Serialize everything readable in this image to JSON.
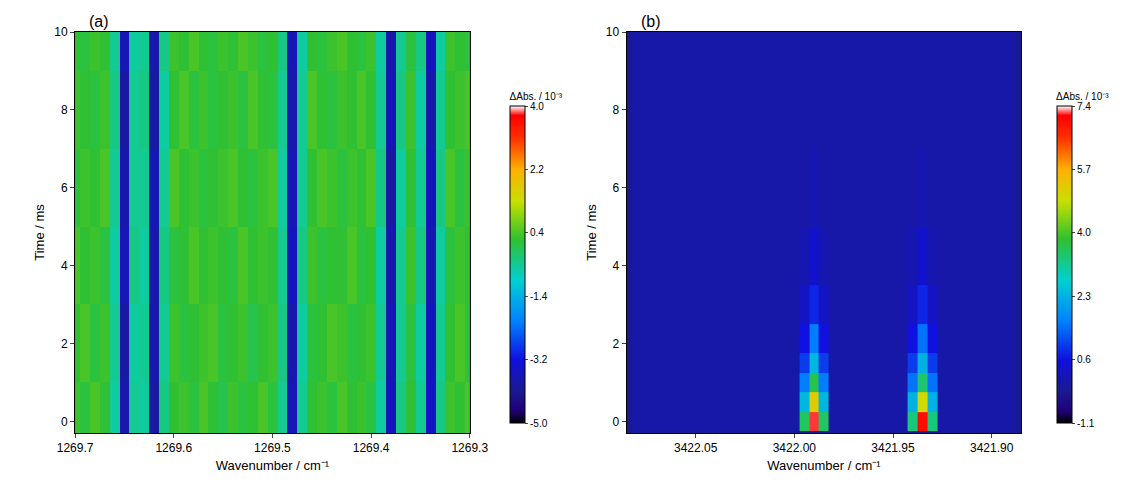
{
  "chart_data": [
    {
      "type": "heatmap",
      "annotations": [
        "(a)"
      ],
      "x_label": "Wavenumber / cm⁻¹",
      "y_label": "Time / ms",
      "colorbar_title": "ΔAbs. / 10⁻³",
      "xlim": [
        1269.7,
        1269.3
      ],
      "xticks": [
        1269.7,
        1269.6,
        1269.5,
        1269.4,
        1269.3
      ],
      "ylim": [
        -0.3,
        10
      ],
      "yticks": [
        0,
        2,
        4,
        6,
        8,
        10
      ],
      "zlim": [
        -5,
        4
      ],
      "zticks": [
        {
          "value": -5,
          "label": "-5.0"
        },
        -3.2,
        -1.4,
        0.4,
        2.2,
        {
          "value": 4,
          "label": "4.0"
        }
      ],
      "x": [
        1269.7,
        1269.69,
        1269.68,
        1269.67,
        1269.66,
        1269.65,
        1269.64,
        1269.63,
        1269.62,
        1269.61,
        1269.6,
        1269.59,
        1269.58,
        1269.57,
        1269.56,
        1269.55,
        1269.54,
        1269.53,
        1269.52,
        1269.51,
        1269.5,
        1269.49,
        1269.48,
        1269.47,
        1269.46,
        1269.45,
        1269.44,
        1269.43,
        1269.42,
        1269.41,
        1269.4,
        1269.39,
        1269.38,
        1269.37,
        1269.36,
        1269.35,
        1269.34,
        1269.33,
        1269.32,
        1269.31,
        1269.3
      ],
      "y": [
        0,
        2,
        4,
        6,
        8,
        10
      ],
      "z": [
        [
          0.3,
          0.1,
          0.4,
          0.2,
          -0.6,
          -3.8,
          -0.5,
          -0.6,
          -3.9,
          -0.4,
          0.2,
          0.3,
          0.1,
          0.4,
          0.2,
          0.0,
          0.3,
          0.1,
          0.2,
          0.4,
          0.1,
          -0.5,
          -3.7,
          -0.5,
          0.2,
          0.3,
          0.1,
          0.4,
          0.2,
          0.3,
          0.1,
          -0.6,
          -3.6,
          -0.4,
          0.2,
          -0.5,
          -3.5,
          -0.4,
          0.3,
          0.2,
          0.4
        ],
        [
          0.2,
          0.4,
          0.1,
          0.3,
          -0.5,
          -3.9,
          -0.6,
          -0.5,
          -3.8,
          -0.5,
          0.3,
          0.1,
          0.2,
          0.3,
          0.4,
          0.1,
          0.2,
          0.3,
          0.0,
          0.2,
          0.3,
          -0.4,
          -3.8,
          -0.6,
          0.1,
          0.2,
          0.4,
          0.3,
          0.1,
          0.2,
          0.3,
          -0.5,
          -3.7,
          -0.5,
          0.1,
          -0.6,
          -3.6,
          -0.5,
          0.2,
          0.4,
          0.1
        ],
        [
          0.4,
          0.2,
          0.3,
          0.1,
          -0.6,
          -3.7,
          -0.4,
          -0.6,
          -3.8,
          -0.4,
          0.1,
          0.2,
          0.4,
          0.2,
          0.3,
          0.2,
          0.1,
          0.4,
          0.2,
          0.3,
          0.2,
          -0.5,
          -3.6,
          -0.4,
          0.3,
          0.1,
          0.2,
          0.2,
          0.4,
          0.1,
          0.2,
          -0.6,
          -3.8,
          -0.5,
          0.3,
          -0.4,
          -3.7,
          -0.6,
          0.1,
          0.3,
          0.2
        ],
        [
          0.1,
          0.3,
          0.2,
          0.4,
          -0.5,
          -3.8,
          -0.5,
          -0.5,
          -3.7,
          -0.5,
          0.4,
          0.2,
          0.3,
          0.1,
          0.2,
          0.3,
          0.4,
          0.2,
          0.1,
          0.3,
          0.4,
          -0.6,
          -3.7,
          -0.5,
          0.2,
          0.4,
          0.3,
          0.1,
          0.3,
          0.2,
          0.4,
          -0.4,
          -3.9,
          -0.6,
          0.2,
          -0.5,
          -3.6,
          -0.4,
          0.4,
          0.1,
          0.3
        ],
        [
          0.3,
          0.2,
          0.1,
          0.3,
          -0.4,
          -3.9,
          -0.5,
          -0.4,
          -3.9,
          -0.6,
          0.2,
          0.4,
          0.1,
          0.3,
          0.1,
          0.2,
          0.3,
          0.1,
          0.4,
          0.2,
          0.1,
          -0.5,
          -3.8,
          -0.5,
          0.4,
          0.2,
          0.1,
          0.3,
          0.2,
          0.4,
          0.2,
          -0.5,
          -3.7,
          -0.4,
          0.3,
          -0.6,
          -3.8,
          -0.5,
          0.2,
          0.3,
          0.4
        ],
        [
          0.2,
          0.1,
          0.3,
          0.2,
          -0.5,
          -3.7,
          -0.6,
          -0.5,
          -3.8,
          -0.4,
          0.3,
          0.2,
          0.4,
          0.2,
          0.1,
          0.3,
          0.2,
          0.4,
          0.3,
          0.1,
          0.2,
          -0.4,
          -3.7,
          -0.6,
          0.2,
          0.1,
          0.3,
          0.4,
          0.2,
          0.1,
          0.3,
          -0.6,
          -3.8,
          -0.5,
          0.1,
          -0.4,
          -3.6,
          -0.6,
          0.3,
          0.2,
          0.1
        ]
      ]
    },
    {
      "type": "heatmap",
      "annotations": [
        "(b)"
      ],
      "x_label": "Wavenumber / cm⁻¹",
      "y_label": "Time / ms",
      "colorbar_title": "ΔAbs. / 10⁻³",
      "xlim": [
        3422.085,
        3421.885
      ],
      "xticks": [
        3422.05,
        {
          "value": 3422.0,
          "label": "3422.00"
        },
        3421.95,
        {
          "value": 3421.9,
          "label": "3421.90"
        }
      ],
      "ylim": [
        -0.3,
        10
      ],
      "yticks": [
        0,
        2,
        4,
        6,
        8,
        10
      ],
      "zlim": [
        -1.1,
        7.4
      ],
      "zticks": [
        -1.1,
        0.6,
        2.3,
        {
          "value": 4,
          "label": "4.0"
        },
        5.7,
        7.4
      ],
      "x": [
        3422.08,
        3422.075,
        3422.07,
        3422.065,
        3422.06,
        3422.055,
        3422.05,
        3422.045,
        3422.04,
        3422.035,
        3422.03,
        3422.025,
        3422.02,
        3422.015,
        3422.01,
        3422.005,
        3422.0,
        3421.995,
        3421.99,
        3421.985,
        3421.98,
        3421.975,
        3421.97,
        3421.965,
        3421.96,
        3421.955,
        3421.95,
        3421.945,
        3421.94,
        3421.935,
        3421.93,
        3421.925,
        3421.92,
        3421.915,
        3421.91,
        3421.905,
        3421.9,
        3421.895,
        3421.89
      ],
      "y": [
        0,
        0.5,
        1,
        1.5,
        2,
        3,
        4,
        6,
        8,
        10
      ],
      "z": [
        [
          0,
          0,
          0,
          0,
          0,
          0,
          0,
          0,
          0,
          0,
          0,
          0,
          0,
          0,
          0,
          0,
          0,
          3.5,
          7.2,
          3.5,
          0,
          0,
          0,
          0,
          0,
          0,
          0,
          0,
          3.3,
          7.0,
          3.3,
          0,
          0,
          0,
          0,
          0,
          0,
          0,
          0
        ],
        [
          0,
          0,
          0,
          0,
          0,
          0,
          0,
          0,
          0,
          0,
          0,
          0,
          0,
          0,
          0,
          0,
          0,
          2.4,
          5.2,
          2.4,
          0,
          0,
          0,
          0,
          0,
          0,
          0,
          0,
          2.3,
          5.0,
          2.3,
          0,
          0,
          0,
          0,
          0,
          0,
          0,
          0
        ],
        [
          0,
          0,
          0,
          0,
          0,
          0,
          0,
          0,
          0,
          0,
          0,
          0,
          0,
          0,
          0,
          0,
          0,
          1.6,
          3.6,
          1.6,
          0,
          0,
          0,
          0,
          0,
          0,
          0,
          0,
          1.5,
          3.4,
          1.5,
          0,
          0,
          0,
          0,
          0,
          0,
          0,
          0
        ],
        [
          0,
          0,
          0,
          0,
          0,
          0,
          0,
          0,
          0,
          0,
          0,
          0,
          0,
          0,
          0,
          0,
          0,
          1.0,
          2.4,
          1.0,
          0,
          0,
          0,
          0,
          0,
          0,
          0,
          0,
          1.0,
          2.3,
          1.0,
          0,
          0,
          0,
          0,
          0,
          0,
          0,
          0
        ],
        [
          0,
          0,
          0,
          0,
          0,
          0,
          0,
          0,
          0,
          0,
          0,
          0,
          0,
          0,
          0,
          0,
          0,
          0.6,
          1.6,
          0.6,
          0,
          0,
          0,
          0,
          0,
          0,
          0,
          0,
          0.6,
          1.5,
          0.6,
          0,
          0,
          0,
          0,
          0,
          0,
          0,
          0
        ],
        [
          0,
          0,
          0,
          0,
          0,
          0,
          0,
          0,
          0,
          0,
          0,
          0,
          0,
          0,
          0,
          0,
          0,
          0.3,
          0.8,
          0.3,
          0,
          0,
          0,
          0,
          0,
          0,
          0,
          0,
          0.3,
          0.8,
          0.3,
          0,
          0,
          0,
          0,
          0,
          0,
          0,
          0
        ],
        [
          0,
          0,
          0,
          0,
          0,
          0,
          0,
          0,
          0,
          0,
          0,
          0,
          0,
          0,
          0,
          0,
          0,
          0.1,
          0.4,
          0.1,
          0,
          0,
          0,
          0,
          0,
          0,
          0,
          0,
          0.1,
          0.4,
          0.1,
          0,
          0,
          0,
          0,
          0,
          0,
          0,
          0
        ],
        [
          0,
          0,
          0,
          0,
          0,
          0,
          0,
          0,
          0,
          0,
          0,
          0,
          0,
          0,
          0,
          0,
          0,
          0,
          0.1,
          0,
          0,
          0,
          0,
          0,
          0,
          0,
          0,
          0,
          0,
          0.1,
          0,
          0,
          0,
          0,
          0,
          0,
          0,
          0,
          0
        ],
        [
          0,
          0,
          0,
          0,
          0,
          0,
          0,
          0,
          0,
          0,
          0,
          0,
          0,
          0,
          0,
          0,
          0,
          0,
          0,
          0,
          0,
          0,
          0,
          0,
          0,
          0,
          0,
          0,
          0,
          0,
          0,
          0,
          0,
          0,
          0,
          0,
          0,
          0,
          0
        ],
        [
          0,
          0,
          0,
          0,
          0,
          0,
          0,
          0,
          0,
          0,
          0,
          0,
          0,
          0,
          0,
          0,
          0,
          0,
          0,
          0,
          0,
          0,
          0,
          0,
          0,
          0,
          0,
          0,
          0,
          0,
          0,
          0,
          0,
          0,
          0,
          0,
          0,
          0,
          0
        ]
      ]
    }
  ]
}
